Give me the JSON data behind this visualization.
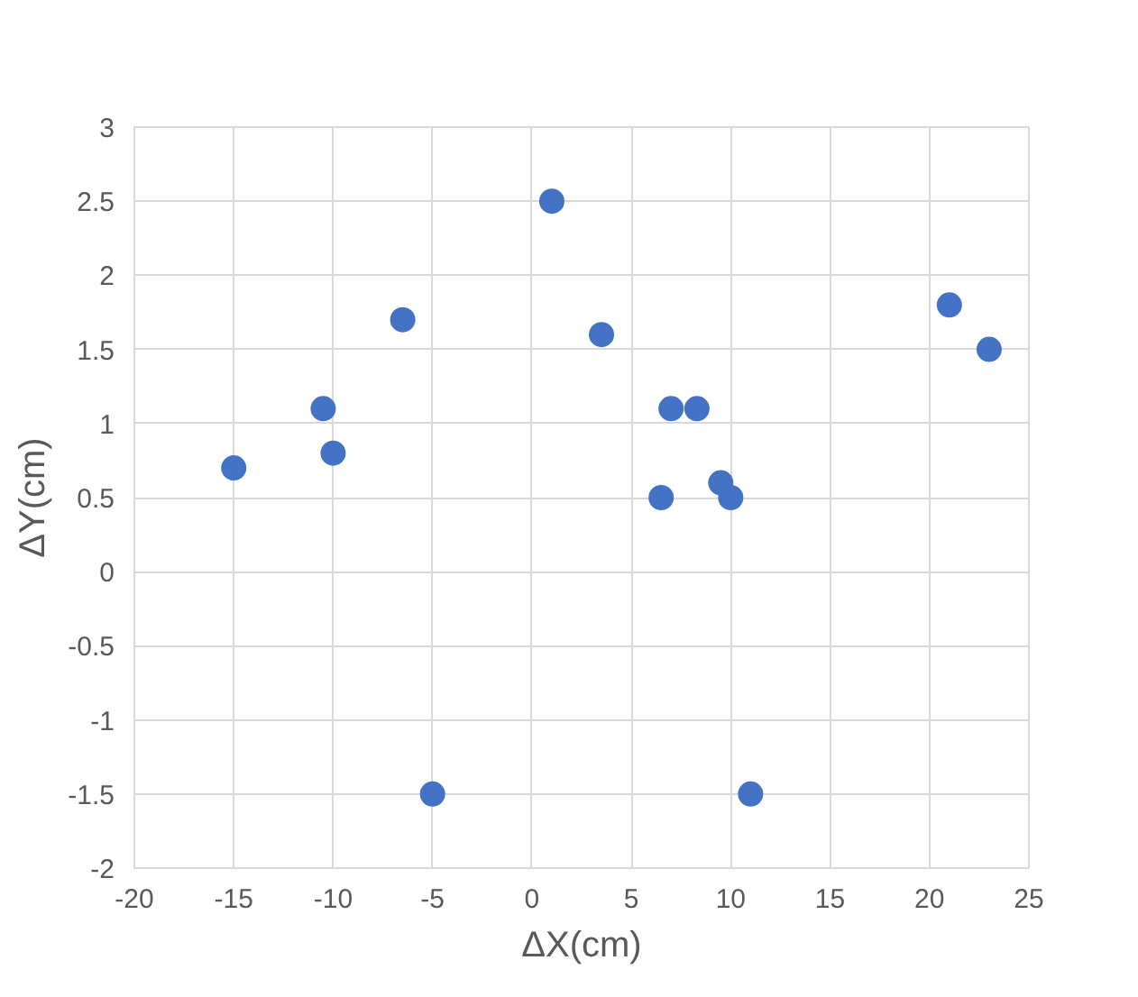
{
  "chart_data": {
    "type": "scatter",
    "xlabel": "ΔX(cm)",
    "ylabel": "ΔY(cm)",
    "x": [
      -15,
      -10.5,
      -10,
      -6.5,
      -5,
      1,
      3.5,
      6.5,
      7,
      8.3,
      9.5,
      10,
      11,
      21,
      23
    ],
    "series": [
      {
        "color": "#4472c4",
        "values": [
          0.7,
          1.1,
          0.8,
          1.7,
          -1.5,
          2.5,
          1.6,
          0.5,
          1.1,
          1.1,
          0.6,
          0.5,
          -1.5,
          1.8,
          1.5
        ]
      }
    ],
    "xlim": [
      -20,
      25
    ],
    "ylim": [
      -2,
      3
    ],
    "xticks": [
      -20,
      -15,
      -10,
      -5,
      0,
      5,
      10,
      15,
      20,
      25
    ],
    "yticks": [
      -2,
      -1.5,
      -1,
      -0.5,
      0,
      0.5,
      1,
      1.5,
      2,
      2.5,
      3
    ],
    "grid": true,
    "marker": "circle"
  }
}
